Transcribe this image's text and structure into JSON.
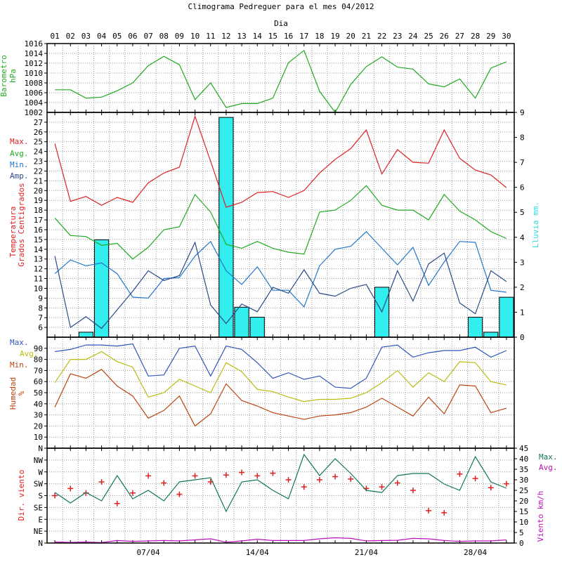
{
  "title": "Climograma Pedreguer para el mes 04/2012",
  "x_label": "Dia",
  "days": [
    "01",
    "02",
    "03",
    "04",
    "05",
    "06",
    "07",
    "08",
    "09",
    "10",
    "11",
    "12",
    "13",
    "14",
    "15",
    "16",
    "17",
    "18",
    "19",
    "20",
    "21",
    "22",
    "23",
    "24",
    "25",
    "26",
    "27",
    "28",
    "29",
    "30"
  ],
  "week_labels": [
    {
      "day": 7,
      "label": "07/04"
    },
    {
      "day": 14,
      "label": "14/04"
    },
    {
      "day": 21,
      "label": "21/04"
    },
    {
      "day": 28,
      "label": "28/04"
    }
  ],
  "colors": {
    "frame": "#000000",
    "grid": "#999999",
    "baro": "#22aa22",
    "max": "#dd2222",
    "avg": "#22aa22",
    "min": "#2277cc",
    "amp": "#2a4a88",
    "rain": "#33eeee",
    "hum_max": "#3355bb",
    "hum_avg": "#bbbb11",
    "hum_min": "#bb4411",
    "dir": "#dd2222",
    "wmax": "#117755",
    "wavg": "#bb11bb"
  },
  "chart_data": [
    {
      "type": "line",
      "name": "barometer",
      "ylabel": [
        "Barometro",
        "hPa"
      ],
      "ylim": [
        1002,
        1016
      ],
      "yticks": [
        1004,
        1006,
        1008,
        1010,
        1012,
        1014,
        1016
      ],
      "series": [
        {
          "name": "",
          "values": [
            1006.6,
            1006.6,
            1004.9,
            1005.1,
            1006.4,
            1008.0,
            1011.5,
            1013.4,
            1011.7,
            1004.6,
            1008.0,
            1003.0,
            1003.8,
            1003.8,
            1004.9,
            1012.1,
            1014.6,
            1006.3,
            1002.0,
            1007.7,
            1011.3,
            1013.3,
            1011.2,
            1010.8,
            1007.8,
            1007.2,
            1008.8,
            1004.9,
            1011.0,
            1012.3
          ]
        }
      ]
    },
    {
      "type": "line",
      "name": "temperature",
      "ylabel": [
        "Temperatura",
        "Grados Centigrados"
      ],
      "y2label": "Lluvia mm.",
      "ylim": [
        5,
        28
      ],
      "yticks": [
        6,
        7,
        8,
        9,
        10,
        11,
        12,
        13,
        14,
        15,
        16,
        17,
        18,
        19,
        20,
        21,
        22,
        23,
        24,
        25,
        26,
        27
      ],
      "y2lim": [
        0,
        9
      ],
      "y2ticks": [
        0,
        1,
        2,
        3,
        4,
        5,
        6,
        7,
        8,
        9
      ],
      "legend": [
        "Max.",
        "Avg.",
        "Min.",
        "Amp."
      ],
      "series": [
        {
          "name": "Max.",
          "values": [
            24.8,
            18.9,
            19.4,
            18.5,
            19.3,
            18.8,
            20.8,
            21.8,
            22.4,
            27.6,
            23.0,
            18.3,
            18.8,
            19.8,
            19.9,
            19.3,
            20.0,
            21.8,
            23.2,
            24.3,
            26.2,
            21.7,
            24.2,
            22.9,
            22.8,
            26.2,
            23.3,
            22.1,
            21.6,
            20.3
          ]
        },
        {
          "name": "Avg.",
          "values": [
            17.2,
            15.4,
            15.3,
            14.4,
            14.6,
            13.0,
            14.2,
            16.0,
            16.3,
            19.6,
            17.8,
            14.5,
            14.1,
            14.8,
            14.1,
            13.7,
            13.5,
            17.8,
            18.0,
            19.0,
            20.5,
            18.5,
            18.0,
            18.0,
            17.0,
            19.6,
            17.9,
            17.0,
            15.8,
            15.1
          ]
        },
        {
          "name": "Min.",
          "values": [
            11.5,
            12.9,
            12.3,
            12.6,
            11.5,
            9.1,
            9.0,
            11.0,
            11.1,
            13.3,
            14.8,
            11.8,
            10.4,
            12.2,
            9.8,
            9.8,
            8.1,
            12.3,
            14.0,
            14.3,
            15.8,
            14.1,
            12.4,
            14.2,
            10.3,
            12.7,
            14.8,
            14.7,
            9.8,
            9.6
          ]
        },
        {
          "name": "Amp.",
          "values": [
            13.3,
            6.0,
            7.1,
            5.9,
            7.8,
            9.7,
            11.8,
            10.8,
            11.3,
            14.7,
            8.3,
            6.4,
            8.4,
            7.6,
            10.1,
            9.5,
            11.9,
            9.5,
            9.2,
            10.0,
            10.4,
            7.6,
            11.8,
            8.7,
            12.5,
            13.6,
            8.5,
            7.4,
            11.8,
            10.7
          ]
        }
      ],
      "rain": {
        "name": "Lluvia",
        "values": [
          0,
          0,
          0.2,
          3.9,
          0,
          0,
          0,
          0,
          0,
          0,
          0,
          8.8,
          1.2,
          0.8,
          0,
          0,
          0,
          0,
          0,
          0,
          0,
          2.0,
          0,
          0,
          0,
          0,
          0,
          0.8,
          0.2,
          1.6
        ]
      }
    },
    {
      "type": "line",
      "name": "humidity",
      "ylabel": [
        "Humedad",
        "%"
      ],
      "ylim": [
        0,
        100
      ],
      "yticks": [
        10,
        20,
        30,
        40,
        50,
        60,
        70,
        80,
        90
      ],
      "legend": [
        "Max.",
        "Avg.",
        "Min."
      ],
      "series": [
        {
          "name": "Max.",
          "values": [
            87,
            89,
            93,
            93,
            92,
            94,
            65,
            66,
            90,
            92,
            65,
            92,
            89,
            77,
            63,
            68,
            62,
            65,
            55,
            54,
            63,
            91,
            93,
            82,
            86,
            88,
            88,
            91,
            82,
            88
          ]
        },
        {
          "name": "Avg.",
          "values": [
            59,
            80,
            80,
            87,
            78,
            73,
            46,
            50,
            62,
            56,
            50,
            77,
            69,
            53,
            51,
            46,
            42,
            44,
            44,
            45,
            50,
            59,
            70,
            55,
            68,
            60,
            78,
            77,
            60,
            57
          ]
        },
        {
          "name": "Min.",
          "values": [
            37,
            67,
            63,
            71,
            56,
            47,
            27,
            34,
            47,
            20,
            31,
            58,
            43,
            38,
            32,
            29,
            26,
            29,
            30,
            32,
            37,
            45,
            37,
            29,
            46,
            31,
            57,
            56,
            32,
            36
          ]
        }
      ]
    },
    {
      "type": "line",
      "name": "wind",
      "ylabel": "Dir. viento",
      "y2label": "Viento km/h",
      "dir_labels": [
        "N",
        "NE",
        "E",
        "SE",
        "S",
        "SW",
        "W",
        "NW",
        "N"
      ],
      "y2lim": [
        0,
        45
      ],
      "y2ticks": [
        0,
        5,
        10,
        15,
        20,
        25,
        30,
        35,
        40,
        45
      ],
      "legend": [
        "Max.",
        "Avg."
      ],
      "direction_points": {
        "name": "Dir.",
        "days": [
          1,
          2,
          3,
          4,
          5,
          6,
          7,
          8,
          9,
          10,
          11,
          12,
          13,
          14,
          15,
          16,
          17,
          18,
          19,
          20,
          21,
          22,
          23,
          24,
          25,
          26,
          27,
          28,
          29,
          30
        ],
        "degrees": [
          180,
          207,
          190,
          232,
          150,
          190,
          255,
          228,
          185,
          255,
          232,
          258,
          268,
          255,
          265,
          240,
          213,
          240,
          252,
          243,
          207,
          213,
          228,
          200,
          123,
          115,
          262,
          245,
          210,
          225
        ]
      },
      "series": [
        {
          "name": "Max.",
          "values": [
            24,
            19,
            24,
            20,
            32,
            21,
            25,
            20,
            29,
            30,
            31,
            15,
            29,
            30,
            25,
            21,
            42,
            32,
            40,
            33,
            25,
            24,
            32,
            33,
            33,
            28,
            25,
            41,
            29,
            26
          ]
        },
        {
          "name": "Avg.",
          "values": [
            0.5,
            0.3,
            0.5,
            0.2,
            1.2,
            0.8,
            1.0,
            1.2,
            1.0,
            1.5,
            2.0,
            0.4,
            1.0,
            1.8,
            1.2,
            1.2,
            1.2,
            2.0,
            2.5,
            2.2,
            1.0,
            1.2,
            1.3,
            2.2,
            2.0,
            1.2,
            0.8,
            1.0,
            1.0,
            1.5
          ]
        }
      ]
    }
  ]
}
